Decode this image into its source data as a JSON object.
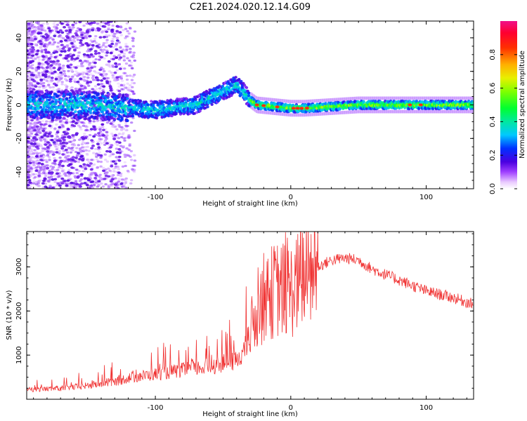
{
  "title": "C2E1.2024.020.12.14.G09",
  "chart_data": [
    {
      "type": "heatmap",
      "xlabel": "Height of straight line (km)",
      "ylabel": "Frequency (Hz)",
      "xlim": [
        -195,
        135
      ],
      "ylim": [
        -50,
        50
      ],
      "xticks": [
        -100,
        0,
        100
      ],
      "yticks": [
        -40,
        -20,
        0,
        20,
        40
      ],
      "grid": false,
      "colorbar": {
        "label": "Normalized spectral amplitude",
        "range": [
          0,
          1
        ],
        "ticks": [
          "0.0",
          "0.2",
          "0.4",
          "0.6",
          "0.8"
        ],
        "colormap": "gist_ncar_r"
      },
      "ridge": {
        "description_points_x": [
          -195,
          -150,
          -100,
          -70,
          -50,
          -40,
          -35,
          -30,
          -25,
          0,
          10,
          50,
          100,
          135
        ],
        "center_frequency_y": [
          0,
          0,
          -3,
          0,
          8,
          12,
          8,
          3,
          0,
          -2,
          -2,
          0,
          0,
          0
        ]
      }
    },
    {
      "type": "line",
      "xlabel": "Height of straight line (km)",
      "ylabel": "SNR (10 * v/v)",
      "xlim": [
        -195,
        135
      ],
      "ylim": [
        0,
        3800
      ],
      "xticks": [
        -100,
        0,
        100
      ],
      "yticks": [
        1000,
        2000,
        3000
      ],
      "grid": false,
      "series": [
        {
          "color": "#f03232",
          "envelope_x": [
            -195,
            -170,
            -150,
            -130,
            -120,
            -100,
            -80,
            -60,
            -40,
            -30,
            -25,
            -20,
            -10,
            0,
            10,
            20,
            30,
            40,
            50,
            60,
            80,
            100,
            120,
            135
          ],
          "envelope_y": [
            250,
            280,
            350,
            450,
            550,
            650,
            750,
            850,
            1000,
            1500,
            2000,
            2300,
            2500,
            2450,
            2800,
            3000,
            3150,
            3200,
            3150,
            2950,
            2700,
            2450,
            2300,
            2150
          ]
        }
      ]
    }
  ]
}
